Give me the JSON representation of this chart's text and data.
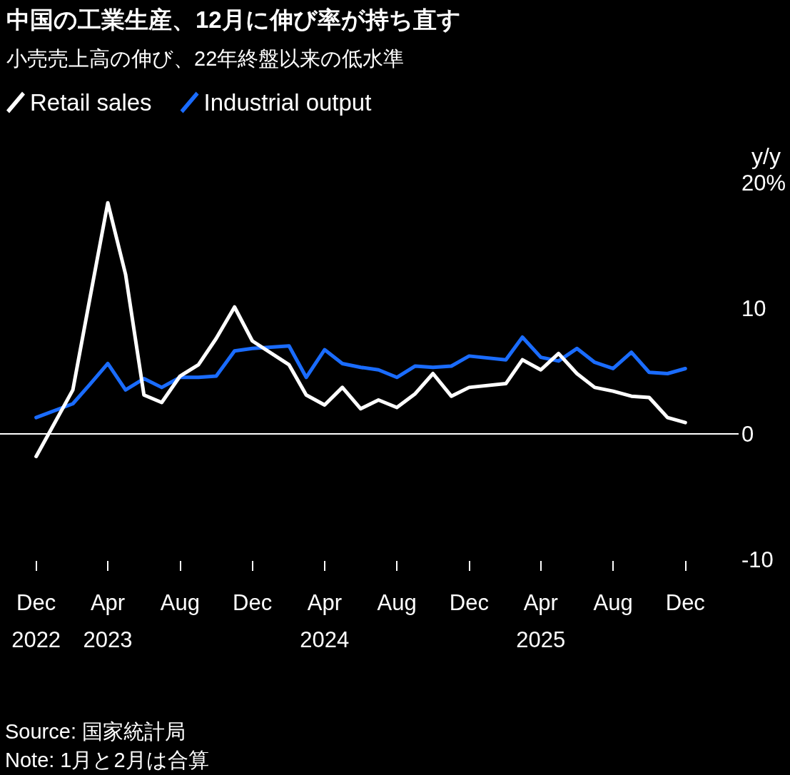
{
  "chart_data": {
    "type": "line",
    "title": "中国の工業生産、12月に伸び率が持ち直す",
    "subtitle": "小売売上高の伸び、22年終盤以来の低水準",
    "ylabel": "y/y",
    "x": [
      "2022-12",
      "2023-02",
      "2023-03",
      "2023-04",
      "2023-05",
      "2023-06",
      "2023-07",
      "2023-08",
      "2023-09",
      "2023-10",
      "2023-11",
      "2023-12",
      "2024-02",
      "2024-03",
      "2024-04",
      "2024-05",
      "2024-06",
      "2024-07",
      "2024-08",
      "2024-09",
      "2024-10",
      "2024-11",
      "2024-12",
      "2025-02",
      "2025-03",
      "2025-04",
      "2025-05",
      "2025-06",
      "2025-07",
      "2025-08",
      "2025-09",
      "2025-10",
      "2025-11",
      "2025-12"
    ],
    "series": [
      {
        "name": "Retail sales",
        "color": "#ffffff",
        "values": [
          -1.8,
          3.5,
          10.6,
          18.4,
          12.7,
          3.1,
          2.5,
          4.6,
          5.5,
          7.6,
          10.1,
          7.4,
          5.5,
          3.1,
          2.3,
          3.7,
          2.0,
          2.7,
          2.1,
          3.2,
          4.8,
          3.0,
          3.7,
          4.0,
          5.9,
          5.1,
          6.4,
          4.8,
          3.7,
          3.4,
          3.0,
          2.9,
          1.3,
          0.9
        ]
      },
      {
        "name": "Industrial output",
        "color": "#1a6cff",
        "values": [
          1.3,
          2.4,
          3.9,
          5.6,
          3.5,
          4.4,
          3.7,
          4.5,
          4.5,
          4.6,
          6.6,
          6.8,
          7.0,
          4.5,
          6.7,
          5.6,
          5.3,
          5.1,
          4.5,
          5.4,
          5.3,
          5.4,
          6.2,
          5.9,
          7.7,
          6.1,
          5.8,
          6.8,
          5.7,
          5.2,
          6.5,
          4.9,
          4.8,
          5.2
        ]
      }
    ],
    "xlim": [
      "2022-10",
      "2026-03"
    ],
    "xticks": [
      {
        "value": "2022-12",
        "label": "Dec\n2022"
      },
      {
        "value": "2023-04",
        "label": "Apr\n2023"
      },
      {
        "value": "2023-08",
        "label": "Aug"
      },
      {
        "value": "2023-12",
        "label": "Dec"
      },
      {
        "value": "2024-04",
        "label": "Apr\n2024"
      },
      {
        "value": "2024-08",
        "label": "Aug"
      },
      {
        "value": "2024-12",
        "label": "Dec"
      },
      {
        "value": "2025-04",
        "label": "Apr\n2025"
      },
      {
        "value": "2025-08",
        "label": "Aug"
      },
      {
        "value": "2025-12",
        "label": "Dec"
      }
    ],
    "ylim": [
      -10,
      20
    ],
    "yticks": [
      -10,
      0,
      10,
      {
        "value": 20,
        "label": "20%"
      }
    ],
    "ref_lines": [
      {
        "axis": "y",
        "value": 0,
        "color": "#ffffff"
      }
    ],
    "annotations": [
      "Source: 国家統計局",
      "Note: 1月と2月は合算"
    ],
    "legend": "top left",
    "grid": false,
    "marker": "none",
    "line_style": "solid"
  }
}
